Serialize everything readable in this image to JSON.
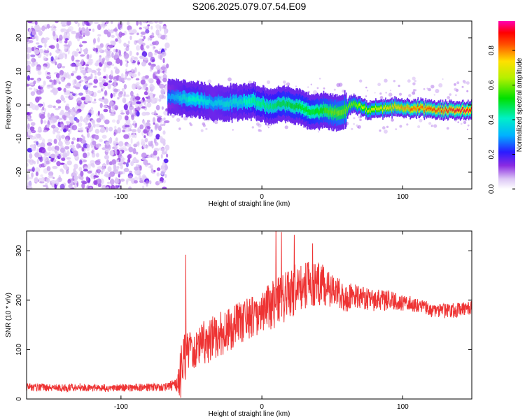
{
  "figure": {
    "title": "S206.2025.079.07.54.E09"
  },
  "chart_data": [
    {
      "type": "heatmap",
      "title": "S206.2025.079.07.54.E09",
      "xlabel": "Height of straight line (km)",
      "ylabel": "Frequency (Hz)",
      "xlim": [
        -167,
        149
      ],
      "ylim": [
        -25,
        25
      ],
      "x_ticks": [
        -100,
        0,
        100
      ],
      "y_ticks": [
        -20,
        -10,
        0,
        10,
        20
      ],
      "x_tick_labels": [
        "-100",
        "0",
        "100"
      ],
      "y_tick_labels": [
        "-20",
        "-10",
        "0",
        "10",
        "20"
      ],
      "grid": false,
      "colorbar": {
        "label": "Normalized spectral amplitude",
        "range": [
          0,
          0.97
        ],
        "ticks": [
          0.0,
          0.2,
          0.4,
          0.6,
          0.8
        ],
        "tick_labels": [
          "0.0",
          "0.2",
          "0.4",
          "0.6",
          "0.8"
        ],
        "colormap": "rainbow (white-violet-blue-cyan-green-yellow-red-magenta)"
      },
      "noise_region": {
        "x_range": [
          -167,
          -67
        ],
        "freq_range": [
          -25,
          25
        ],
        "amplitude_range": [
          0.0,
          0.15
        ]
      },
      "signal_track": [
        {
          "x": -67,
          "freq": 2.5,
          "amp": 0.3
        },
        {
          "x": -55,
          "freq": 2.0,
          "amp": 0.4
        },
        {
          "x": -45,
          "freq": 1.5,
          "amp": 0.4
        },
        {
          "x": -35,
          "freq": 0.5,
          "amp": 0.35
        },
        {
          "x": -25,
          "freq": 0.5,
          "amp": 0.4
        },
        {
          "x": -15,
          "freq": 1.0,
          "amp": 0.4
        },
        {
          "x": -5,
          "freq": 1.0,
          "amp": 0.45
        },
        {
          "x": 5,
          "freq": -0.5,
          "amp": 0.45
        },
        {
          "x": 15,
          "freq": 0.5,
          "amp": 0.5
        },
        {
          "x": 25,
          "freq": -0.5,
          "amp": 0.5
        },
        {
          "x": 35,
          "freq": -2.0,
          "amp": 0.5
        },
        {
          "x": 45,
          "freq": -1.5,
          "amp": 0.55
        },
        {
          "x": 55,
          "freq": -2.5,
          "amp": 0.6
        },
        {
          "x": 65,
          "freq": 0.5,
          "amp": 0.6
        },
        {
          "x": 75,
          "freq": -1.5,
          "amp": 0.65
        },
        {
          "x": 85,
          "freq": -1.0,
          "amp": 0.7
        },
        {
          "x": 95,
          "freq": -0.5,
          "amp": 0.75
        },
        {
          "x": 105,
          "freq": -1.0,
          "amp": 0.8
        },
        {
          "x": 115,
          "freq": -1.0,
          "amp": 0.85
        },
        {
          "x": 125,
          "freq": -1.5,
          "amp": 0.85
        },
        {
          "x": 135,
          "freq": -1.5,
          "amp": 0.9
        },
        {
          "x": 145,
          "freq": -1.5,
          "amp": 0.9
        }
      ]
    },
    {
      "type": "line",
      "xlabel": "Height of straight line (km)",
      "ylabel": "SNR (10 * v/v)",
      "xlim": [
        -167,
        149
      ],
      "ylim": [
        0,
        340
      ],
      "x_ticks": [
        -100,
        0,
        100
      ],
      "y_ticks": [
        0,
        100,
        200,
        300
      ],
      "x_tick_labels": [
        "-100",
        "0",
        "100"
      ],
      "y_tick_labels": [
        "0",
        "100",
        "200",
        "300"
      ],
      "grid": false,
      "series": [
        {
          "color": "#ee3333",
          "x": [
            -167,
            -150,
            -130,
            -110,
            -90,
            -70,
            -60,
            -57,
            -55,
            -50,
            -40,
            -30,
            -20,
            -10,
            0,
            10,
            20,
            30,
            40,
            50,
            60,
            70,
            80,
            90,
            100,
            110,
            120,
            130,
            140,
            149
          ],
          "y": [
            25,
            22,
            24,
            22,
            23,
            24,
            28,
            60,
            85,
            100,
            115,
            130,
            145,
            160,
            175,
            195,
            215,
            230,
            235,
            220,
            205,
            205,
            200,
            200,
            195,
            190,
            180,
            178,
            180,
            185
          ],
          "noise_amplitude": [
            8,
            8,
            8,
            8,
            8,
            8,
            15,
            60,
            50,
            40,
            45,
            45,
            45,
            45,
            45,
            50,
            55,
            50,
            45,
            35,
            30,
            25,
            22,
            20,
            18,
            15,
            15,
            15,
            15,
            15
          ],
          "spikes": [
            {
              "x": -54,
              "y": 292
            },
            {
              "x": 10,
              "y": 340
            },
            {
              "x": 14,
              "y": 338
            },
            {
              "x": 23,
              "y": 332
            },
            {
              "x": 36,
              "y": 315
            }
          ]
        }
      ]
    }
  ]
}
